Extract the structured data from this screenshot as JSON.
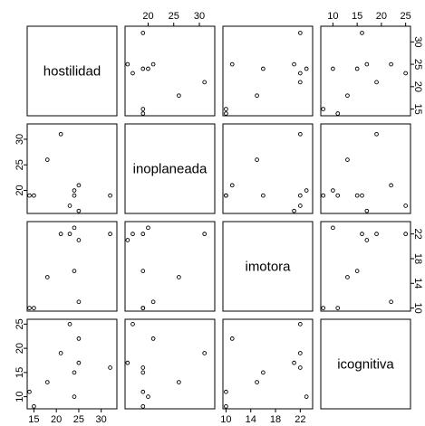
{
  "chart_data": {
    "type": "scatter",
    "title": "",
    "variables": [
      "hostilidad",
      "inoplaneada",
      "imotora",
      "icognitiva"
    ],
    "ranges": {
      "hostilidad": [
        13.5,
        33.5
      ],
      "inoplaneada": [
        15.5,
        33
      ],
      "imotora": [
        9.5,
        24
      ],
      "icognitiva": [
        7.5,
        26
      ]
    },
    "ticks": {
      "hostilidad": [
        15,
        20,
        25,
        30
      ],
      "inoplaneada": [
        20,
        25,
        30
      ],
      "imotora": [
        10,
        14,
        18,
        22
      ],
      "icognitiva": [
        10,
        15,
        20,
        25
      ]
    },
    "observations": [
      {
        "hostilidad": 14,
        "inoplaneada": 19,
        "imotora": 10,
        "icognitiva": 11
      },
      {
        "hostilidad": 15,
        "inoplaneada": 19,
        "imotora": 10,
        "icognitiva": 8
      },
      {
        "hostilidad": 18,
        "inoplaneada": 26,
        "imotora": 15,
        "icognitiva": 13
      },
      {
        "hostilidad": 21,
        "inoplaneada": 31,
        "imotora": 22,
        "icognitiva": 19
      },
      {
        "hostilidad": 23,
        "inoplaneada": 17,
        "imotora": 22,
        "icognitiva": 25
      },
      {
        "hostilidad": 24,
        "inoplaneada": 19,
        "imotora": 16,
        "icognitiva": 15
      },
      {
        "hostilidad": 24,
        "inoplaneada": 20,
        "imotora": 23,
        "icognitiva": 10
      },
      {
        "hostilidad": 25,
        "inoplaneada": 16,
        "imotora": 21,
        "icognitiva": 17
      },
      {
        "hostilidad": 25,
        "inoplaneada": 21,
        "imotora": 11,
        "icognitiva": 22
      },
      {
        "hostilidad": 32,
        "inoplaneada": 19,
        "imotora": 22,
        "icognitiva": 16
      }
    ]
  }
}
